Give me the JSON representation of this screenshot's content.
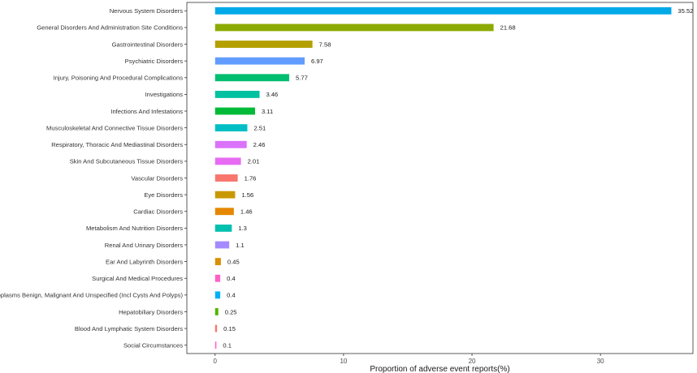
{
  "chart_data": {
    "type": "bar",
    "orientation": "horizontal",
    "title": "",
    "xlabel": "Proportion of adverse event reports(%)",
    "ylabel": "",
    "xlim": [
      -2.2,
      37.2
    ],
    "xticks": [
      0,
      10,
      20,
      30
    ],
    "grid": false,
    "legend": "none",
    "categories": [
      "Nervous System Disorders",
      "General Disorders And Administration Site Conditions",
      "Gastrointestinal Disorders",
      "Psychiatric Disorders",
      "Injury, Poisoning And Procedural Complications",
      "Investigations",
      "Infections And Infestations",
      "Musculoskeletal And Connective Tissue Disorders",
      "Respiratory, Thoracic And Mediastinal Disorders",
      "Skin And Subcutaneous Tissue Disorders",
      "Vascular Disorders",
      "Eye Disorders",
      "Cardiac Disorders",
      "Metabolism And Nutrition Disorders",
      "Renal And Urinary Disorders",
      "Ear And Labyrinth Disorders",
      "Surgical And Medical Procedures",
      "Neoplasms Benign, Malignant And Unspecified (Incl Cysts And Polyps)",
      "Hepatobiliary Disorders",
      "Blood And Lymphatic System Disorders",
      "Social Circumstances"
    ],
    "values": [
      35.52,
      21.68,
      7.58,
      6.97,
      5.77,
      3.46,
      3.11,
      2.51,
      2.46,
      2.01,
      1.76,
      1.56,
      1.46,
      1.3,
      1.1,
      0.45,
      0.4,
      0.4,
      0.25,
      0.15,
      0.1
    ],
    "value_labels": [
      "35.52",
      "21.68",
      "7.58",
      "6.97",
      "5.77",
      "3.46",
      "3.11",
      "2.51",
      "2.46",
      "2.01",
      "1.76",
      "1.56",
      "1.46",
      "1.3",
      "1.1",
      "0.45",
      "0.4",
      "0.4",
      "0.25",
      "0.15",
      "0.1"
    ],
    "colors": [
      "#00A9E8",
      "#8CAB00",
      "#B4A000",
      "#619CFF",
      "#00BE70",
      "#00C1A0",
      "#00BA38",
      "#00BFC4",
      "#DB72FB",
      "#E76BF3",
      "#F8766D",
      "#C99800",
      "#E58700",
      "#00C0AF",
      "#A58AFF",
      "#D89000",
      "#FF61C3",
      "#00B0F6",
      "#53B400",
      "#F8766D",
      "#FF61CC"
    ]
  }
}
